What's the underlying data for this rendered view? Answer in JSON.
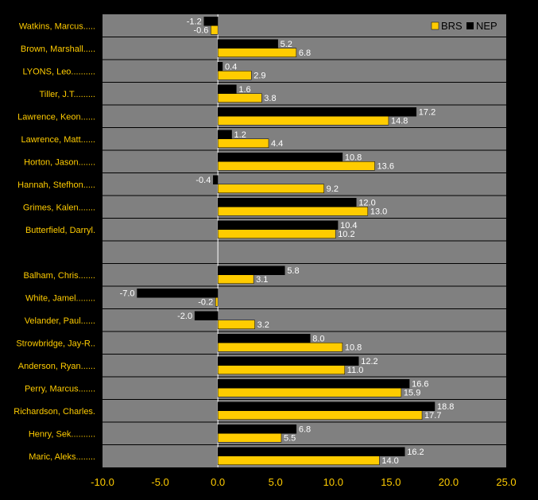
{
  "chart_data": {
    "type": "bar",
    "orientation": "horizontal",
    "categories": [
      "Watkins, Marcus.....",
      "Brown, Marshall.....",
      "LYONS, Leo..........",
      "Tiller, J.T.........",
      "Lawrence, Keon......",
      "Lawrence, Matt......",
      "Horton, Jason.......",
      "Hannah, Stefhon.....",
      "Grimes, Kalen.......",
      "Butterfield, Darryl.",
      "",
      "Balham, Chris.......",
      "White, Jamel........",
      "Velander, Paul......",
      "Strowbridge, Jay-R..",
      "Anderson, Ryan......",
      "Perry, Marcus.......",
      "Richardson, Charles.",
      "Henry, Sek..........",
      "Maric, Aleks........"
    ],
    "series": [
      {
        "name": "NEP",
        "color": "#000000",
        "values": [
          -1.2,
          5.2,
          0.4,
          1.6,
          17.2,
          1.2,
          10.8,
          -0.4,
          12.0,
          10.4,
          null,
          5.8,
          -7.0,
          -2.0,
          8.0,
          12.2,
          16.6,
          18.8,
          6.8,
          16.2
        ],
        "labels": [
          "-1.2",
          "5.2",
          "0.4",
          "1.6",
          "17.2",
          "1.2",
          "10.8",
          "-0.4",
          "12.0",
          "10.4",
          "",
          "5.8",
          "-7.0",
          "-2.0",
          "8.0",
          "12.2",
          "16.6",
          "18.8",
          "6.8",
          "16.2"
        ]
      },
      {
        "name": "BRS",
        "color": "#FFCC00",
        "values": [
          -0.6,
          6.8,
          2.9,
          3.8,
          14.8,
          4.4,
          13.6,
          9.2,
          13.0,
          10.2,
          null,
          3.1,
          -0.2,
          3.2,
          10.8,
          11.0,
          15.9,
          17.7,
          5.5,
          14.0
        ],
        "labels": [
          "-0.6",
          "6.8",
          "2.9",
          "3.8",
          "14.8",
          "4.4",
          "13.6",
          "9.2",
          "13.0",
          "10.2",
          "",
          "3.1",
          "-0.2",
          "3.2",
          "10.8",
          "11.0",
          "15.9",
          "17.7",
          "5.5",
          "14.0"
        ]
      }
    ],
    "xlim": [
      -10.0,
      25.0
    ],
    "x_ticks": [
      "-10.0",
      "-5.0",
      "0.0",
      "5.0",
      "10.0",
      "15.0",
      "20.0",
      "25.0"
    ],
    "legend_position": "top-right",
    "grid": "horizontal row separators",
    "colors": {
      "background": "#000000",
      "plot_area": "#808080",
      "row_line": "#000000",
      "zero_line": "#ffffff",
      "label_text": "#FFCC00",
      "value_text": "#ffffff"
    }
  }
}
